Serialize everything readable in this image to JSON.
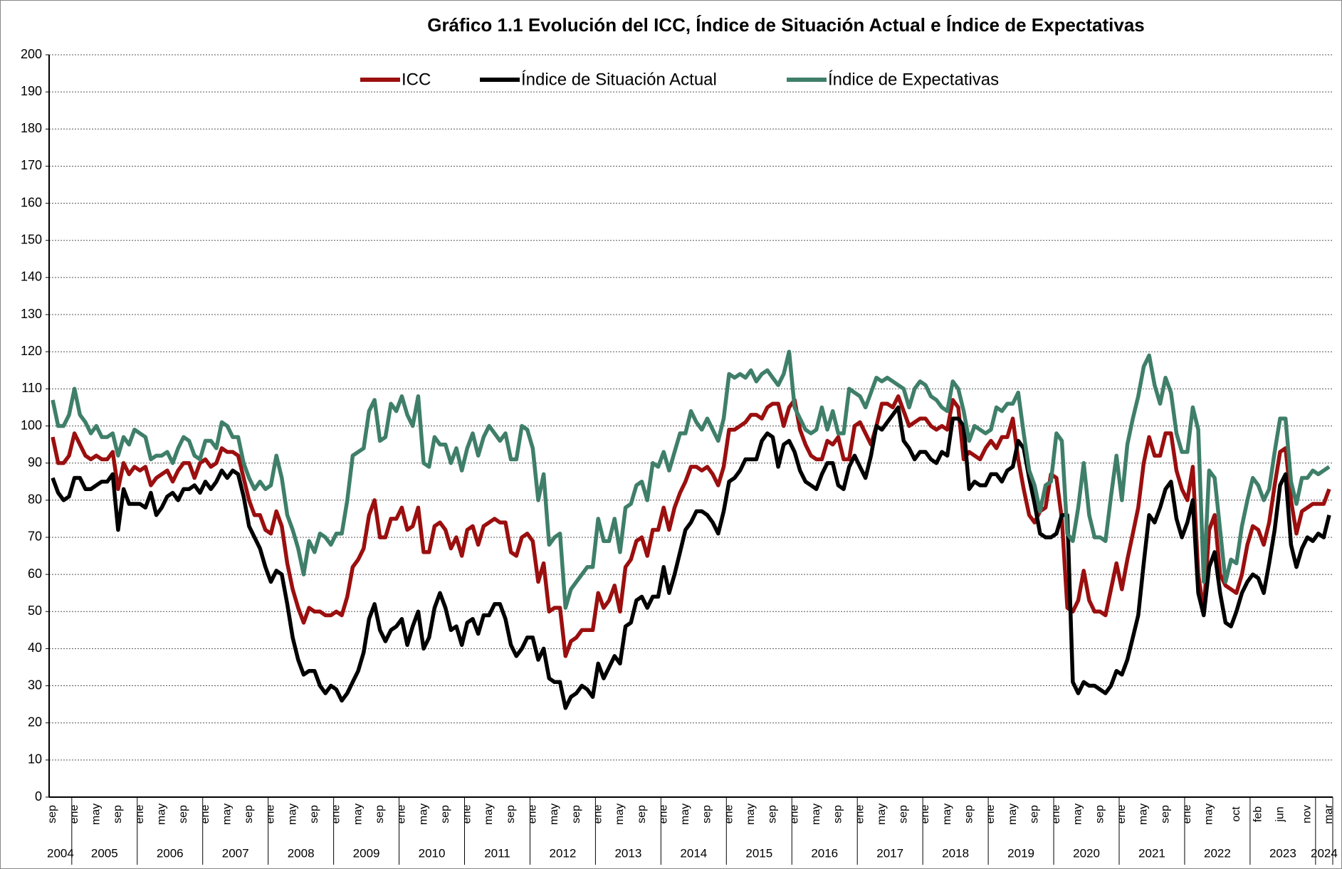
{
  "chart_data": {
    "type": "line",
    "title": "Gráfico 1.1 Evolución del ICC, Índice de Situación Actual e Índice de Expectativas",
    "categories": [
      "sep",
      null,
      null,
      null,
      "ene",
      null,
      null,
      null,
      "may",
      null,
      null,
      null,
      "sep",
      null,
      null,
      null,
      "ene",
      null,
      null,
      null,
      "may",
      null,
      null,
      null,
      "sep",
      null,
      null,
      null,
      "ene",
      null,
      null,
      null,
      "may",
      null,
      null,
      null,
      "sep",
      null,
      null,
      null,
      "ene",
      null,
      null,
      null,
      "may",
      null,
      null,
      null,
      "sep",
      null,
      null,
      null,
      "ene",
      null,
      null,
      null,
      "may",
      null,
      null,
      null,
      "sep",
      null,
      null,
      null,
      "ene",
      null,
      null,
      null,
      "may",
      null,
      null,
      null,
      "sep",
      null,
      null,
      null,
      "ene",
      null,
      null,
      null,
      "may",
      null,
      null,
      null,
      "sep",
      null,
      null,
      null,
      "ene",
      null,
      null,
      null,
      "may",
      null,
      null,
      null,
      "sep",
      null,
      null,
      null,
      "ene",
      null,
      null,
      null,
      "may",
      null,
      null,
      null,
      "sep",
      null,
      null,
      null,
      "ene",
      null,
      null,
      null,
      "may",
      null,
      null,
      null,
      "sep",
      null,
      null,
      null,
      "ene",
      null,
      null,
      null,
      "may",
      null,
      null,
      null,
      "sep",
      null,
      null,
      null,
      "ene",
      null,
      null,
      null,
      "may",
      null,
      null,
      null,
      "sep",
      null,
      null,
      null,
      "ene",
      null,
      null,
      null,
      "may",
      null,
      null,
      null,
      "sep",
      null,
      null,
      null,
      "ene",
      null,
      null,
      null,
      "may",
      null,
      null,
      null,
      "sep",
      null,
      null,
      null,
      "ene",
      null,
      null,
      null,
      "may",
      null,
      null,
      null,
      "sep",
      null,
      null,
      null,
      "ene",
      null,
      null,
      null,
      "may",
      null,
      null,
      null,
      "sep",
      null,
      null,
      null,
      "ene",
      null,
      null,
      null,
      "may",
      null,
      null,
      null,
      "sep",
      null,
      null,
      null,
      "ene",
      null,
      null,
      null,
      "may",
      null,
      null,
      null,
      null,
      "oct",
      null,
      null,
      null,
      "feb",
      null,
      null,
      null,
      "jun",
      null,
      null,
      null,
      null,
      "nov",
      null,
      null,
      null,
      "mar"
    ],
    "category_groups": [
      "2004",
      "2004",
      "2004",
      "2004",
      "2005",
      "2005",
      "2005",
      "2005",
      "2005",
      "2005",
      "2005",
      "2005",
      "2005",
      "2005",
      "2005",
      "2005",
      "2006",
      "2006",
      "2006",
      "2006",
      "2006",
      "2006",
      "2006",
      "2006",
      "2006",
      "2006",
      "2006",
      "2006",
      "2007",
      "2007",
      "2007",
      "2007",
      "2007",
      "2007",
      "2007",
      "2007",
      "2007",
      "2007",
      "2007",
      "2007",
      "2008",
      "2008",
      "2008",
      "2008",
      "2008",
      "2008",
      "2008",
      "2008",
      "2008",
      "2008",
      "2008",
      "2008",
      "2009",
      "2009",
      "2009",
      "2009",
      "2009",
      "2009",
      "2009",
      "2009",
      "2009",
      "2009",
      "2009",
      "2009",
      "2010",
      "2010",
      "2010",
      "2010",
      "2010",
      "2010",
      "2010",
      "2010",
      "2010",
      "2010",
      "2010",
      "2010",
      "2011",
      "2011",
      "2011",
      "2011",
      "2011",
      "2011",
      "2011",
      "2011",
      "2011",
      "2011",
      "2011",
      "2011",
      "2012",
      "2012",
      "2012",
      "2012",
      "2012",
      "2012",
      "2012",
      "2012",
      "2012",
      "2012",
      "2012",
      "2012",
      "2013",
      "2013",
      "2013",
      "2013",
      "2013",
      "2013",
      "2013",
      "2013",
      "2013",
      "2013",
      "2013",
      "2013",
      "2014",
      "2014",
      "2014",
      "2014",
      "2014",
      "2014",
      "2014",
      "2014",
      "2014",
      "2014",
      "2014",
      "2014",
      "2015",
      "2015",
      "2015",
      "2015",
      "2015",
      "2015",
      "2015",
      "2015",
      "2015",
      "2015",
      "2015",
      "2015",
      "2016",
      "2016",
      "2016",
      "2016",
      "2016",
      "2016",
      "2016",
      "2016",
      "2016",
      "2016",
      "2016",
      "2016",
      "2017",
      "2017",
      "2017",
      "2017",
      "2017",
      "2017",
      "2017",
      "2017",
      "2017",
      "2017",
      "2017",
      "2017",
      "2018",
      "2018",
      "2018",
      "2018",
      "2018",
      "2018",
      "2018",
      "2018",
      "2018",
      "2018",
      "2018",
      "2018",
      "2019",
      "2019",
      "2019",
      "2019",
      "2019",
      "2019",
      "2019",
      "2019",
      "2019",
      "2019",
      "2019",
      "2019",
      "2020",
      "2020",
      "2020",
      "2020",
      "2020",
      "2020",
      "2020",
      "2020",
      "2020",
      "2020",
      "2020",
      "2020",
      "2021",
      "2021",
      "2021",
      "2021",
      "2021",
      "2021",
      "2021",
      "2021",
      "2021",
      "2021",
      "2021",
      "2021",
      "2022",
      "2022",
      "2022",
      "2022",
      "2022",
      "2022",
      "2022",
      "2022",
      "2022",
      "2022",
      "2022",
      "2022",
      "2023",
      "2023",
      "2023",
      "2023",
      "2023",
      "2023",
      "2023",
      "2023",
      "2023",
      "2023",
      "2023",
      "2023",
      "2024",
      "2024",
      "2024"
    ],
    "series": [
      {
        "name": "ICC",
        "color": "#9b0f0f",
        "values": [
          97,
          90,
          90,
          92,
          98,
          95,
          92,
          91,
          92,
          91,
          91,
          93,
          83,
          90,
          87,
          89,
          88,
          89,
          84,
          86,
          87,
          88,
          85,
          88,
          90,
          90,
          86,
          90,
          91,
          89,
          90,
          94,
          93,
          93,
          92,
          86,
          80,
          76,
          76,
          72,
          71,
          77,
          73,
          63,
          56,
          51,
          47,
          51,
          50,
          50,
          49,
          49,
          50,
          49,
          54,
          62,
          64,
          67,
          76,
          80,
          70,
          70,
          75,
          75,
          78,
          72,
          73,
          78,
          66,
          66,
          73,
          74,
          72,
          67,
          70,
          65,
          72,
          73,
          68,
          73,
          74,
          75,
          74,
          74,
          66,
          65,
          70,
          71,
          69,
          58,
          63,
          50,
          51,
          51,
          38,
          42,
          43,
          45,
          45,
          45,
          55,
          51,
          53,
          57,
          50,
          62,
          64,
          69,
          70,
          65,
          72,
          72,
          78,
          72,
          78,
          82,
          85,
          89,
          89,
          88,
          89,
          87,
          84,
          89,
          99,
          99,
          100,
          101,
          103,
          103,
          102,
          105,
          106,
          106,
          100,
          105,
          107,
          99,
          95,
          92,
          91,
          91,
          96,
          95,
          97,
          91,
          91,
          100,
          101,
          98,
          95,
          100,
          106,
          106,
          105,
          108,
          104,
          100,
          101,
          102,
          102,
          100,
          99,
          100,
          99,
          107,
          105,
          91,
          93,
          92,
          91,
          94,
          96,
          94,
          97,
          97,
          102,
          91,
          83,
          76,
          74,
          77,
          78,
          87,
          86,
          75,
          51,
          50,
          53,
          61,
          53,
          50,
          50,
          49,
          56,
          63,
          56,
          64,
          71,
          78,
          90,
          97,
          92,
          92,
          98,
          98,
          88,
          83,
          80,
          89,
          60,
          50,
          72,
          76,
          60,
          57,
          56,
          55,
          60,
          68,
          73,
          72,
          68,
          74,
          84,
          93,
          94,
          80,
          71,
          77,
          78,
          79,
          79,
          79,
          83
        ]
      },
      {
        "name": "Índice de Situación Actual",
        "color": "#000000",
        "values": [
          86,
          82,
          80,
          81,
          86,
          86,
          83,
          83,
          84,
          85,
          85,
          87,
          72,
          83,
          79,
          79,
          79,
          78,
          82,
          76,
          78,
          81,
          82,
          80,
          83,
          83,
          84,
          82,
          85,
          83,
          85,
          88,
          86,
          88,
          87,
          81,
          73,
          70,
          67,
          62,
          58,
          61,
          60,
          52,
          43,
          37,
          33,
          34,
          34,
          30,
          28,
          30,
          29,
          26,
          28,
          31,
          34,
          39,
          48,
          52,
          45,
          42,
          45,
          46,
          48,
          41,
          46,
          50,
          40,
          43,
          51,
          55,
          51,
          45,
          46,
          41,
          47,
          48,
          44,
          49,
          49,
          52,
          52,
          48,
          41,
          38,
          40,
          43,
          43,
          37,
          40,
          32,
          31,
          31,
          24,
          27,
          28,
          30,
          29,
          27,
          36,
          32,
          35,
          38,
          36,
          46,
          47,
          53,
          54,
          51,
          54,
          54,
          62,
          55,
          60,
          66,
          72,
          74,
          77,
          77,
          76,
          74,
          71,
          77,
          85,
          86,
          88,
          91,
          91,
          91,
          96,
          98,
          97,
          89,
          95,
          96,
          93,
          88,
          85,
          84,
          83,
          87,
          90,
          90,
          84,
          83,
          89,
          92,
          89,
          86,
          92,
          100,
          99,
          101,
          103,
          105,
          96,
          94,
          91,
          93,
          93,
          91,
          90,
          93,
          92,
          102,
          102,
          100,
          83,
          85,
          84,
          84,
          87,
          87,
          85,
          88,
          89,
          96,
          94,
          86,
          79,
          71,
          70,
          70,
          71,
          76,
          76,
          31,
          28,
          31,
          30,
          30,
          29,
          28,
          30,
          34,
          33,
          37,
          43,
          49,
          63,
          76,
          74,
          78,
          83,
          85,
          75,
          70,
          74,
          80,
          55,
          49,
          62,
          66,
          55,
          47,
          46,
          50,
          55,
          58,
          60,
          59,
          55,
          63,
          72,
          84,
          87,
          68,
          62,
          67,
          70,
          69,
          71,
          70,
          76
        ]
      },
      {
        "name": "Índice de Expectativas",
        "color": "#3f7f6a",
        "values": [
          107,
          100,
          100,
          103,
          110,
          103,
          101,
          98,
          100,
          97,
          97,
          98,
          92,
          97,
          95,
          99,
          98,
          97,
          91,
          92,
          92,
          93,
          90,
          94,
          97,
          96,
          92,
          91,
          96,
          96,
          94,
          101,
          100,
          97,
          97,
          90,
          86,
          83,
          85,
          83,
          84,
          92,
          86,
          76,
          72,
          67,
          60,
          69,
          66,
          71,
          70,
          68,
          71,
          71,
          80,
          92,
          93,
          94,
          104,
          107,
          96,
          97,
          106,
          104,
          108,
          103,
          100,
          108,
          90,
          89,
          97,
          95,
          95,
          90,
          94,
          88,
          94,
          98,
          92,
          97,
          100,
          98,
          96,
          98,
          91,
          91,
          100,
          99,
          94,
          80,
          87,
          68,
          70,
          71,
          51,
          56,
          58,
          60,
          62,
          62,
          75,
          69,
          69,
          75,
          66,
          78,
          79,
          84,
          85,
          80,
          90,
          89,
          93,
          88,
          93,
          98,
          98,
          104,
          101,
          99,
          102,
          99,
          96,
          102,
          114,
          113,
          114,
          113,
          115,
          112,
          114,
          115,
          113,
          111,
          114,
          120,
          105,
          102,
          99,
          98,
          99,
          105,
          99,
          104,
          98,
          98,
          110,
          109,
          108,
          105,
          109,
          113,
          112,
          113,
          112,
          111,
          110,
          105,
          110,
          112,
          111,
          108,
          107,
          105,
          104,
          112,
          110,
          104,
          96,
          100,
          99,
          98,
          99,
          105,
          104,
          106,
          106,
          109,
          98,
          88,
          84,
          77,
          84,
          85,
          98,
          96,
          71,
          69,
          78,
          90,
          76,
          70,
          70,
          69,
          81,
          92,
          80,
          95,
          102,
          108,
          116,
          119,
          111,
          106,
          113,
          109,
          98,
          93,
          93,
          105,
          99,
          58,
          88,
          86,
          72,
          58,
          64,
          63,
          73,
          80,
          86,
          84,
          80,
          83,
          93,
          102,
          102,
          85,
          79,
          86,
          86,
          88,
          87,
          88,
          89
        ]
      }
    ],
    "ylim": [
      0,
      200
    ],
    "yticks": [
      0,
      10,
      20,
      30,
      40,
      50,
      60,
      70,
      80,
      90,
      100,
      110,
      120,
      130,
      140,
      150,
      160,
      170,
      180,
      190,
      200
    ],
    "grid": true,
    "legend": "top"
  }
}
